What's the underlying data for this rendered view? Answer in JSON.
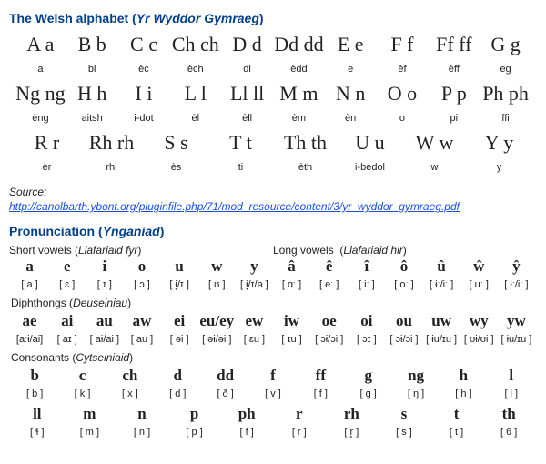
{
  "title_a": "The Welsh alphabet",
  "title_b": "Yr Wyddor Gymraeg",
  "alphabet": [
    [
      {
        "l": "A a",
        "p": "a"
      },
      {
        "l": "B b",
        "p": "bi"
      },
      {
        "l": "C c",
        "p": "èc"
      },
      {
        "l": "Ch ch",
        "p": "èch"
      },
      {
        "l": "D d",
        "p": "di"
      },
      {
        "l": "Dd dd",
        "p": "èdd"
      },
      {
        "l": "E e",
        "p": "e"
      },
      {
        "l": "F f",
        "p": "èf"
      },
      {
        "l": "Ff ff",
        "p": "èff"
      },
      {
        "l": "G g",
        "p": "eg"
      }
    ],
    [
      {
        "l": "Ng ng",
        "p": "èng"
      },
      {
        "l": "H h",
        "p": "aitsh"
      },
      {
        "l": "I i",
        "p": "i-dot"
      },
      {
        "l": "L l",
        "p": "èl"
      },
      {
        "l": "Ll ll",
        "p": "èll"
      },
      {
        "l": "M m",
        "p": "èm"
      },
      {
        "l": "N n",
        "p": "èn"
      },
      {
        "l": "O o",
        "p": "o"
      },
      {
        "l": "P p",
        "p": "pi"
      },
      {
        "l": "Ph ph",
        "p": "ffi"
      }
    ],
    [
      {
        "l": "R r",
        "p": "èr"
      },
      {
        "l": "Rh rh",
        "p": "rhi"
      },
      {
        "l": "S s",
        "p": "ès"
      },
      {
        "l": "T t",
        "p": "ti"
      },
      {
        "l": "Th th",
        "p": "èth"
      },
      {
        "l": "U u",
        "p": "i-bedol"
      },
      {
        "l": "W w",
        "p": "w"
      },
      {
        "l": "Y y",
        "p": "y"
      }
    ]
  ],
  "source_label": "Source:",
  "source_url": "http://canolbarth.ybont.org/pluginfile.php/71/mod_resource/content/3/yr_wyddor_gymraeg.pdf",
  "pron_title_a": "Pronunciation",
  "pron_title_b": "Ynganiad",
  "short_vowels_label_a": "Short vowels",
  "short_vowels_label_b": "Llafariaid fyr",
  "long_vowels_label_a": "Long vowels",
  "long_vowels_label_b": "Llafariaid hir",
  "vowels": [
    {
      "s": "a",
      "i": "[ a ]"
    },
    {
      "s": "e",
      "i": "[ ɛ ]"
    },
    {
      "s": "i",
      "i": "[ ɪ ]"
    },
    {
      "s": "o",
      "i": "[ ɔ ]"
    },
    {
      "s": "u",
      "i": "[ ɨ̞/ɪ ]"
    },
    {
      "s": "w",
      "i": "[ ʊ ]"
    },
    {
      "s": "y",
      "i": "[ ɨ̞/ɪ/ə ]"
    },
    {
      "s": "â",
      "i": "[ ɑː ]"
    },
    {
      "s": "ê",
      "i": "[ eː ]"
    },
    {
      "s": "î",
      "i": "[ iː ]"
    },
    {
      "s": "ô",
      "i": "[ oː ]"
    },
    {
      "s": "û",
      "i": "[ ɨː/iː ]"
    },
    {
      "s": "ŵ",
      "i": "[ uː ]"
    },
    {
      "s": "ŷ",
      "i": "[ ɨː/iː ]"
    }
  ],
  "diph_label_a": "Diphthongs",
  "diph_label_b": "Deuseiniau",
  "diphthongs": [
    {
      "s": "ae",
      "i": "[aːɨ/ai]"
    },
    {
      "s": "ai",
      "i": "[ aɪ ]"
    },
    {
      "s": "au",
      "i": "[ aɨ/ai ]"
    },
    {
      "s": "aw",
      "i": "[ au ]"
    },
    {
      "s": "ei",
      "i": "[ əi ]"
    },
    {
      "s": "eu/ey",
      "i": "[ əɨ/əi ]"
    },
    {
      "s": "ew",
      "i": "[ ɛu ]"
    },
    {
      "s": "iw",
      "i": "[ ɪu ]"
    },
    {
      "s": "oe",
      "i": "[ ɔɨ/ɔi ]"
    },
    {
      "s": "oi",
      "i": "[ ɔɪ ]"
    },
    {
      "s": "ou",
      "i": "[ ɔɨ/ɔi ]"
    },
    {
      "s": "uw",
      "i": "[ ɨu/ɪu ]"
    },
    {
      "s": "wy",
      "i": "[ ʊɨ/ʊi ]"
    },
    {
      "s": "yw",
      "i": "[ ɨu/ɪu ]"
    }
  ],
  "cons_label_a": "Consonants",
  "cons_label_b": "Cytseiniaid",
  "consonants": [
    [
      {
        "s": "b",
        "i": "[ b ]"
      },
      {
        "s": "c",
        "i": "[ k ]"
      },
      {
        "s": "ch",
        "i": "[ x ]"
      },
      {
        "s": "d",
        "i": "[ d ]"
      },
      {
        "s": "dd",
        "i": "[ ð ]"
      },
      {
        "s": "f",
        "i": "[ v ]"
      },
      {
        "s": "ff",
        "i": "[ f ]"
      },
      {
        "s": "g",
        "i": "[ g ]"
      },
      {
        "s": "ng",
        "i": "[ ŋ ]"
      },
      {
        "s": "h",
        "i": "[ h ]"
      },
      {
        "s": "l",
        "i": "[ l ]"
      }
    ],
    [
      {
        "s": "ll",
        "i": "[ ɬ ]"
      },
      {
        "s": "m",
        "i": "[ m ]"
      },
      {
        "s": "n",
        "i": "[ n ]"
      },
      {
        "s": "p",
        "i": "[ p ]"
      },
      {
        "s": "ph",
        "i": "[ f ]"
      },
      {
        "s": "r",
        "i": "[ r ]"
      },
      {
        "s": "rh",
        "i": "[ r̥ ]"
      },
      {
        "s": "s",
        "i": "[ s ]"
      },
      {
        "s": "t",
        "i": "[ t ]"
      },
      {
        "s": "th",
        "i": "[ θ ]"
      }
    ]
  ]
}
